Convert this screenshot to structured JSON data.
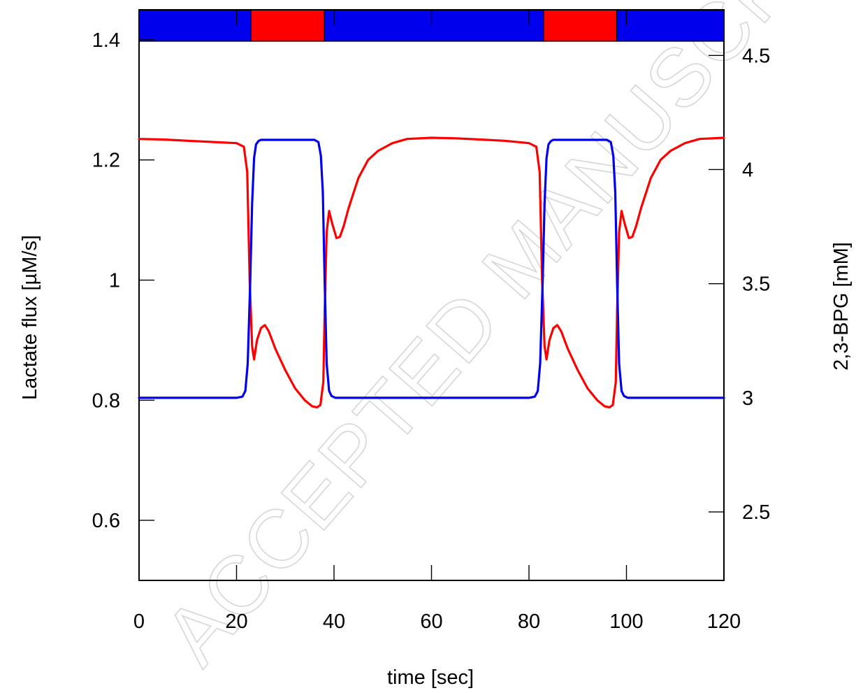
{
  "watermark_text": "ACCEPTED MANUSCRIPT",
  "chart_data": {
    "type": "line",
    "title": "",
    "xlabel": "time [sec]",
    "ylabel_left": "Lactate flux [µM/s]",
    "ylabel_right": "2,3-BPG [mM]",
    "xlim": [
      0,
      120
    ],
    "ylim_left": [
      0.5,
      1.45
    ],
    "ylim_right": [
      2.2,
      4.7
    ],
    "x_ticks": [
      0,
      20,
      40,
      60,
      80,
      100,
      120
    ],
    "x_tick_labels": [
      "0",
      "20",
      "40",
      "60",
      "80",
      "100",
      "120"
    ],
    "y_left_ticks": [
      0.6,
      0.8,
      1.0,
      1.2,
      1.4
    ],
    "y_left_tick_labels": [
      "0.6",
      "0.8",
      "1",
      "1.2",
      "1.4"
    ],
    "y_right_ticks": [
      2.5,
      3.0,
      3.5,
      4.0,
      4.5
    ],
    "y_right_tick_labels": [
      "2.5",
      "3",
      "3.5",
      "4",
      "4.5"
    ],
    "grid": false,
    "state_bar": {
      "segments": [
        {
          "start": 0,
          "end": 23,
          "color": "#0000ee"
        },
        {
          "start": 23,
          "end": 38,
          "color": "#ff0000"
        },
        {
          "start": 38,
          "end": 83,
          "color": "#0000ee"
        },
        {
          "start": 83,
          "end": 98,
          "color": "#ff0000"
        },
        {
          "start": 98,
          "end": 120,
          "color": "#0000ee"
        }
      ]
    },
    "series": [
      {
        "axis": "left",
        "color": "#ff0000",
        "x": [
          0,
          5,
          10,
          15,
          20,
          21.5,
          22.2,
          22.7,
          23.2,
          23.6,
          24.2,
          25,
          25.8,
          26.6,
          28,
          30,
          32,
          34,
          35.5,
          36.5,
          37.2,
          37.8,
          38.1,
          38.5,
          39,
          39.6,
          40.5,
          41.2,
          42,
          43,
          45,
          47,
          49,
          52,
          55,
          60,
          65,
          70,
          75,
          80,
          81.5,
          82.2,
          82.7,
          83.2,
          83.6,
          84.2,
          85,
          85.8,
          86.6,
          88,
          90,
          92,
          94,
          95.5,
          96.5,
          97.2,
          97.8,
          98.1,
          98.5,
          99,
          99.6,
          100.5,
          101.2,
          102,
          103,
          105,
          107,
          109,
          112,
          115,
          120
        ],
        "y": [
          1.235,
          1.234,
          1.232,
          1.23,
          1.228,
          1.222,
          1.18,
          1.0,
          0.89,
          0.868,
          0.9,
          0.92,
          0.925,
          0.915,
          0.885,
          0.85,
          0.82,
          0.8,
          0.79,
          0.788,
          0.792,
          0.83,
          0.95,
          1.08,
          1.115,
          1.095,
          1.07,
          1.072,
          1.09,
          1.12,
          1.17,
          1.2,
          1.215,
          1.228,
          1.235,
          1.237,
          1.236,
          1.234,
          1.232,
          1.228,
          1.222,
          1.18,
          1.0,
          0.89,
          0.868,
          0.9,
          0.92,
          0.925,
          0.915,
          0.885,
          0.85,
          0.82,
          0.8,
          0.79,
          0.788,
          0.792,
          0.83,
          0.95,
          1.08,
          1.115,
          1.095,
          1.07,
          1.072,
          1.09,
          1.12,
          1.17,
          1.2,
          1.215,
          1.228,
          1.235,
          1.237
        ]
      },
      {
        "axis": "right",
        "color": "#0000ee",
        "x": [
          0,
          10,
          20,
          21.2,
          21.8,
          22.3,
          22.8,
          23.2,
          23.6,
          24,
          24.5,
          25,
          26,
          30,
          36,
          36.8,
          37.3,
          37.7,
          38.1,
          38.5,
          39,
          39.5,
          40.3,
          45,
          60,
          80,
          81.2,
          81.8,
          82.3,
          82.8,
          83.2,
          83.6,
          84,
          84.5,
          85,
          86,
          90,
          96,
          96.8,
          97.3,
          97.7,
          98.1,
          98.5,
          99,
          99.5,
          100.3,
          105,
          120
        ],
        "y": [
          3.0,
          3.0,
          3.0,
          3.005,
          3.03,
          3.15,
          3.5,
          3.85,
          4.05,
          4.11,
          4.125,
          4.13,
          4.13,
          4.13,
          4.13,
          4.12,
          4.06,
          3.9,
          3.5,
          3.15,
          3.03,
          3.008,
          3.0,
          3.0,
          3.0,
          3.0,
          3.005,
          3.03,
          3.15,
          3.5,
          3.85,
          4.05,
          4.11,
          4.125,
          4.13,
          4.13,
          4.13,
          4.13,
          4.12,
          4.06,
          3.9,
          3.5,
          3.15,
          3.03,
          3.008,
          3.0,
          3.0,
          3.0
        ]
      }
    ]
  }
}
